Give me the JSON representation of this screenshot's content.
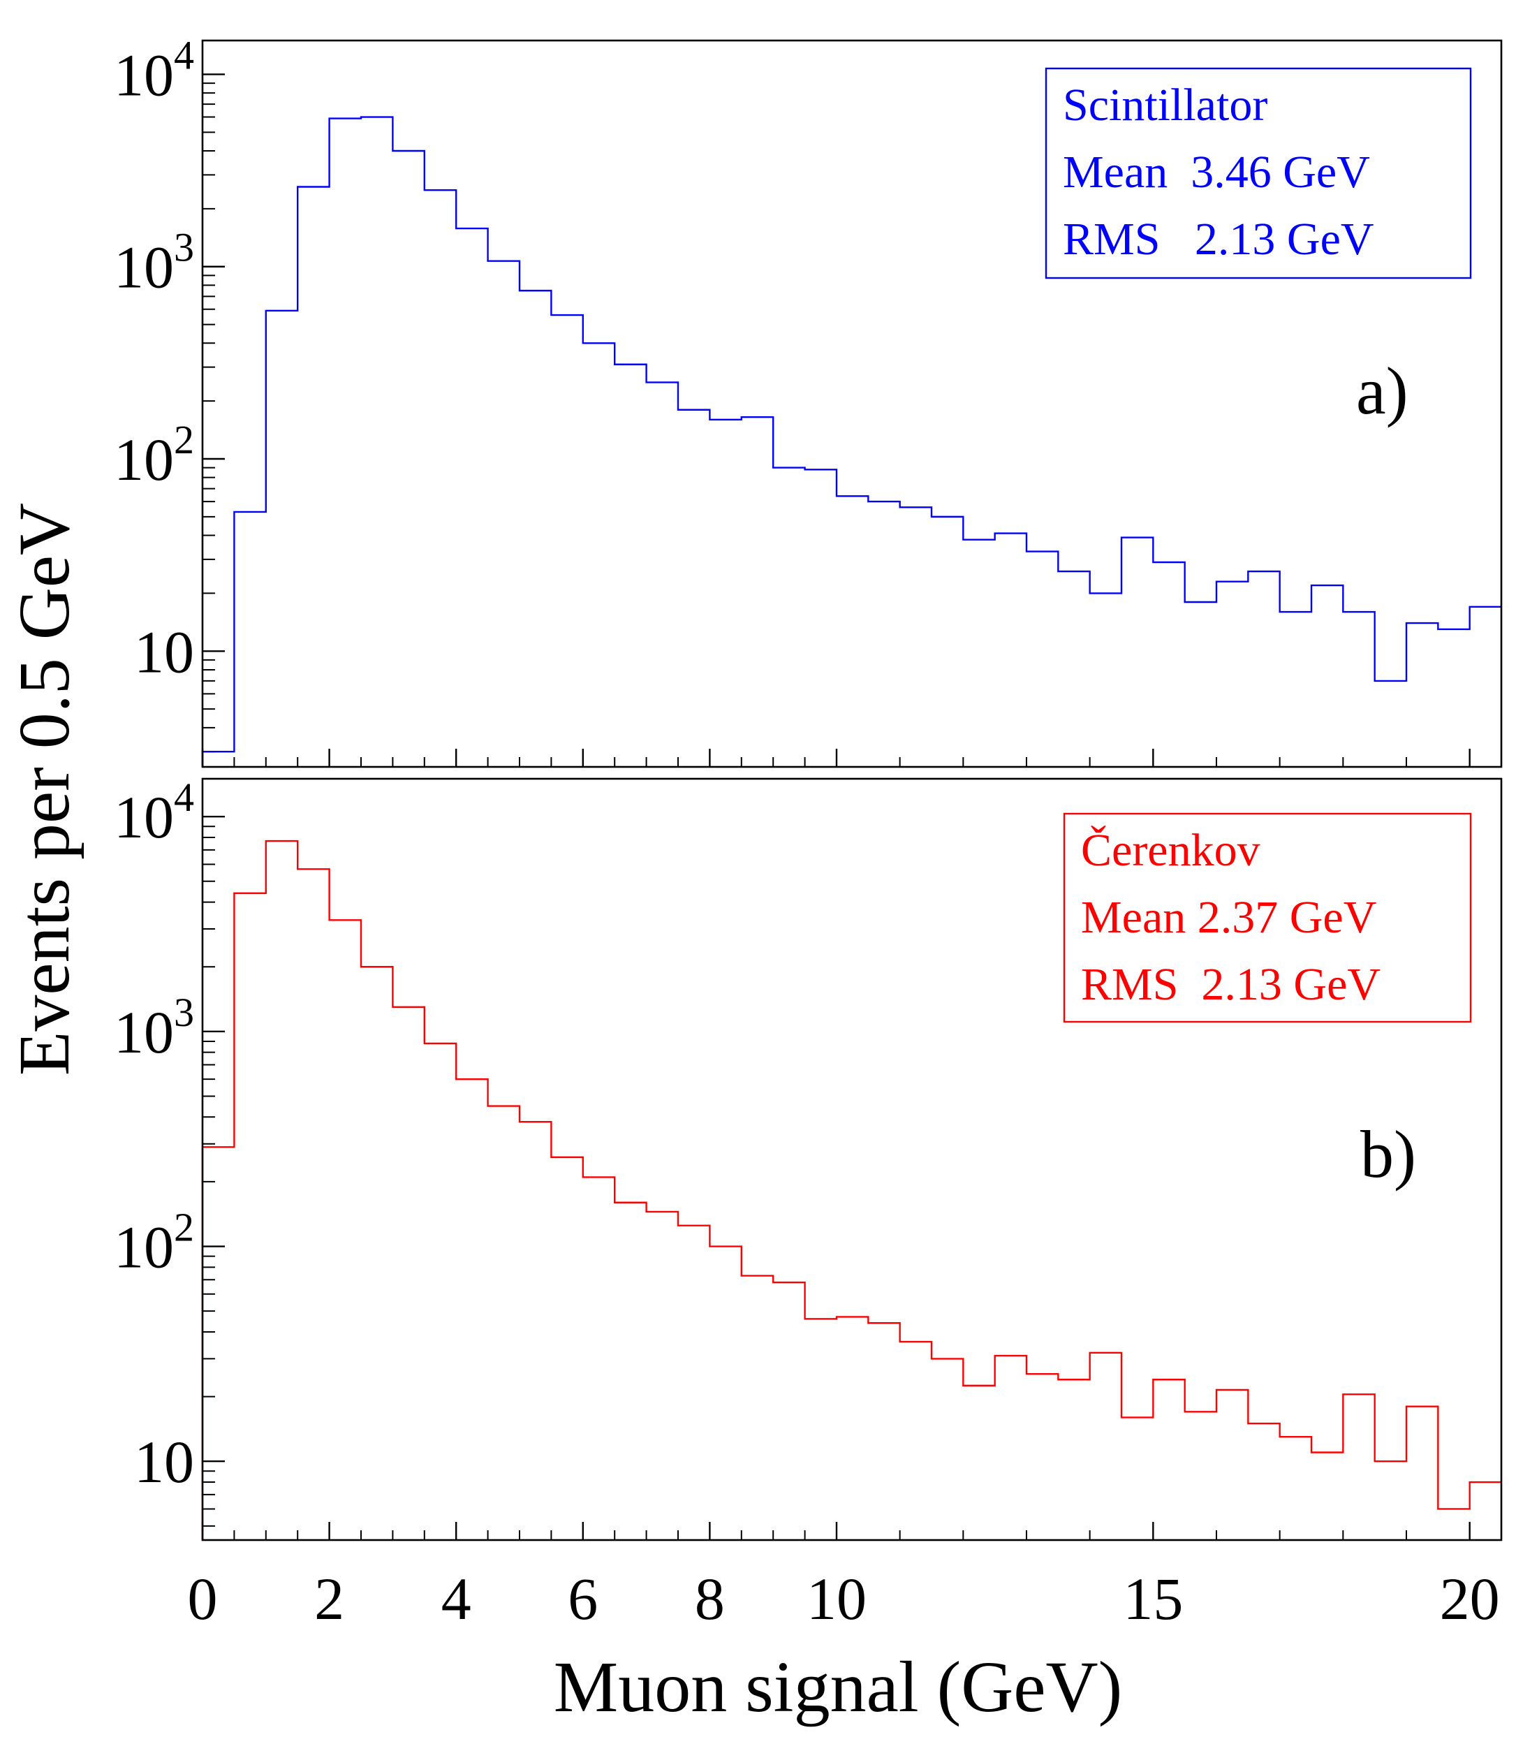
{
  "figure": {
    "ylabel": "Events per 0.5 GeV",
    "xlabel": "Muon signal (GeV)"
  },
  "chart_data": [
    {
      "type": "histogram-step",
      "panel_label": "a)",
      "legend": {
        "title": "Scintillator",
        "line1": "Mean  3.46 GeV",
        "line2": "RMS   2.13 GeV",
        "placement": "top-right"
      },
      "color": "#0000ff",
      "yscale": "log",
      "ylim": [
        2.5,
        15000
      ],
      "yticks": [
        {
          "value": 10,
          "base": "10",
          "exp": ""
        },
        {
          "value": 100,
          "base": "10",
          "exp": "2"
        },
        {
          "value": 1000,
          "base": "10",
          "exp": "3"
        },
        {
          "value": 10000,
          "base": "10",
          "exp": "4"
        }
      ],
      "bin_edges": [
        0,
        0.5,
        1,
        1.5,
        2,
        2.5,
        3,
        3.5,
        4,
        4.5,
        5,
        5.5,
        6,
        6.5,
        7,
        7.5,
        8,
        8.5,
        9,
        9.5,
        10,
        10.5,
        11,
        11.5,
        12,
        12.5,
        13,
        13.5,
        14,
        14.5,
        15,
        15.5,
        16,
        16.5,
        17,
        17.5,
        18,
        18.5,
        19,
        19.5,
        20,
        20.5
      ],
      "values": [
        3,
        53,
        590,
        2600,
        5900,
        6000,
        4000,
        2500,
        1580,
        1070,
        750,
        560,
        400,
        310,
        250,
        180,
        160,
        165,
        90,
        88,
        64,
        60,
        56,
        50,
        38,
        41,
        33,
        26,
        20,
        39,
        29,
        18,
        23,
        26,
        16,
        22,
        16,
        7,
        14,
        13,
        17
      ]
    },
    {
      "type": "histogram-step",
      "panel_label": "b)",
      "legend": {
        "title": "Čerenkov",
        "line1": "Mean 2.37 GeV",
        "line2": "RMS  2.13 GeV",
        "placement": "top-right"
      },
      "color": "#ff0000",
      "yscale": "log",
      "ylim": [
        4.3,
        15000
      ],
      "yticks": [
        {
          "value": 10,
          "base": "10",
          "exp": ""
        },
        {
          "value": 100,
          "base": "10",
          "exp": "2"
        },
        {
          "value": 1000,
          "base": "10",
          "exp": "3"
        },
        {
          "value": 10000,
          "base": "10",
          "exp": "4"
        }
      ],
      "bin_edges": [
        0,
        0.5,
        1,
        1.5,
        2,
        2.5,
        3,
        3.5,
        4,
        4.5,
        5,
        5.5,
        6,
        6.5,
        7,
        7.5,
        8,
        8.5,
        9,
        9.5,
        10,
        10.5,
        11,
        11.5,
        12,
        12.5,
        13,
        13.5,
        14,
        14.5,
        15,
        15.5,
        16,
        16.5,
        17,
        17.5,
        18,
        18.5,
        19,
        19.5,
        20,
        20.5
      ],
      "values": [
        290,
        4400,
        7700,
        5700,
        3300,
        2000,
        1300,
        880,
        600,
        450,
        380,
        260,
        210,
        160,
        145,
        125,
        100,
        73,
        68,
        46,
        47,
        44,
        36,
        30,
        22.5,
        31,
        25.5,
        24,
        32,
        16,
        24,
        17,
        21.5,
        15,
        13,
        11,
        20.5,
        10,
        18,
        6,
        8
      ]
    }
  ],
  "xaxis": {
    "xlim": [
      0,
      20.5
    ],
    "ticks": [
      {
        "value": 0,
        "label": "0"
      },
      {
        "value": 2,
        "label": "2"
      },
      {
        "value": 4,
        "label": "4"
      },
      {
        "value": 6,
        "label": "6"
      },
      {
        "value": 8,
        "label": "8"
      },
      {
        "value": 10,
        "label": "10"
      },
      {
        "value": 15,
        "label": "15"
      },
      {
        "value": 20,
        "label": "20"
      }
    ],
    "axis_break": "linear scale 0–10 in 2-unit steps, then compressed 10–20.5 in 5-unit steps",
    "segments": [
      {
        "from": 0,
        "to": 10,
        "minor_step": 0.5
      },
      {
        "from": 10,
        "to": 20.5,
        "minor_step": 1
      }
    ]
  }
}
